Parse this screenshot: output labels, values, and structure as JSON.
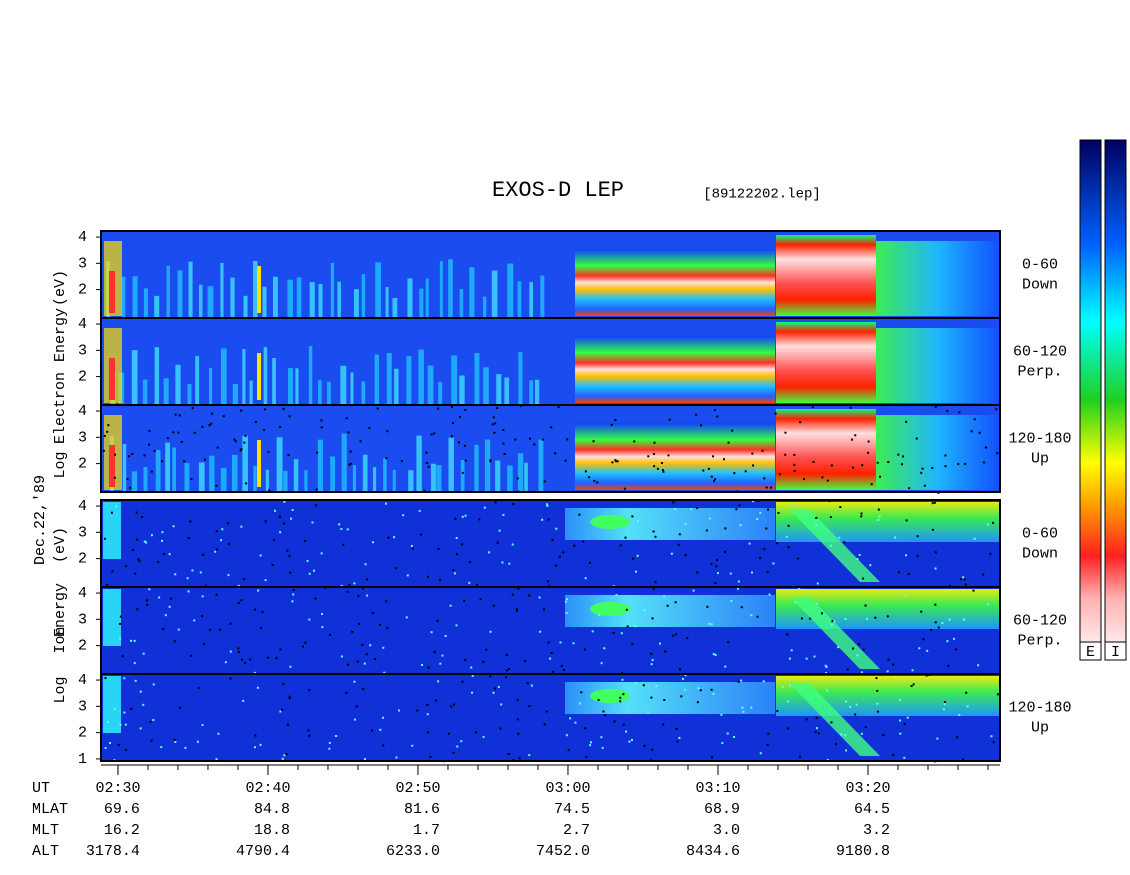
{
  "header": {
    "title": "EXOS-D LEP",
    "file": "[89122202.lep]"
  },
  "date": "Dec.22,'89",
  "ylim": [
    0.92,
    4.23
  ],
  "electron": {
    "axis_words": [
      "Log",
      "Electron",
      "Energy",
      "(eV)"
    ],
    "panels": [
      {
        "pitch": "0-60",
        "direction": "Down",
        "yticks": [
          2,
          3,
          4
        ]
      },
      {
        "pitch": "60-120",
        "direction": "Perp.",
        "yticks": [
          2,
          3,
          4
        ]
      },
      {
        "pitch": "120-180",
        "direction": "Up",
        "yticks": [
          2,
          3,
          4
        ]
      }
    ]
  },
  "ion": {
    "axis_words": [
      "Log",
      "Ion",
      "Energy",
      "(eV)"
    ],
    "panels": [
      {
        "pitch": "0-60",
        "direction": "Down",
        "yticks": [
          2,
          3,
          4
        ]
      },
      {
        "pitch": "60-120",
        "direction": "Perp.",
        "yticks": [
          2,
          3,
          4
        ]
      },
      {
        "pitch": "120-180",
        "direction": "Up",
        "yticks": [
          1,
          2,
          3,
          4
        ]
      }
    ]
  },
  "time_axis": {
    "label": "UT",
    "xlim": [
      28.87,
      88.8
    ],
    "ticks": [
      {
        "value": 30,
        "label": "02:30"
      },
      {
        "value": 40,
        "label": "02:40"
      },
      {
        "value": 50,
        "label": "02:50"
      },
      {
        "value": 60,
        "label": "03:00"
      },
      {
        "value": 70,
        "label": "03:10"
      },
      {
        "value": 80,
        "label": "03:20"
      }
    ]
  },
  "ephemeris": [
    {
      "label": "MLAT",
      "values": [
        "69.6",
        "84.8",
        "81.6",
        "74.5",
        "68.9",
        "64.5"
      ]
    },
    {
      "label": "MLT",
      "values": [
        "16.2",
        "18.8",
        "1.7",
        "2.7",
        "3.0",
        "3.2"
      ]
    },
    {
      "label": "ALT",
      "values": [
        "3178.4",
        "4790.4",
        "6233.0",
        "7452.0",
        "8434.6",
        "9180.8"
      ]
    }
  ],
  "colorbars": [
    "E",
    "I"
  ]
}
